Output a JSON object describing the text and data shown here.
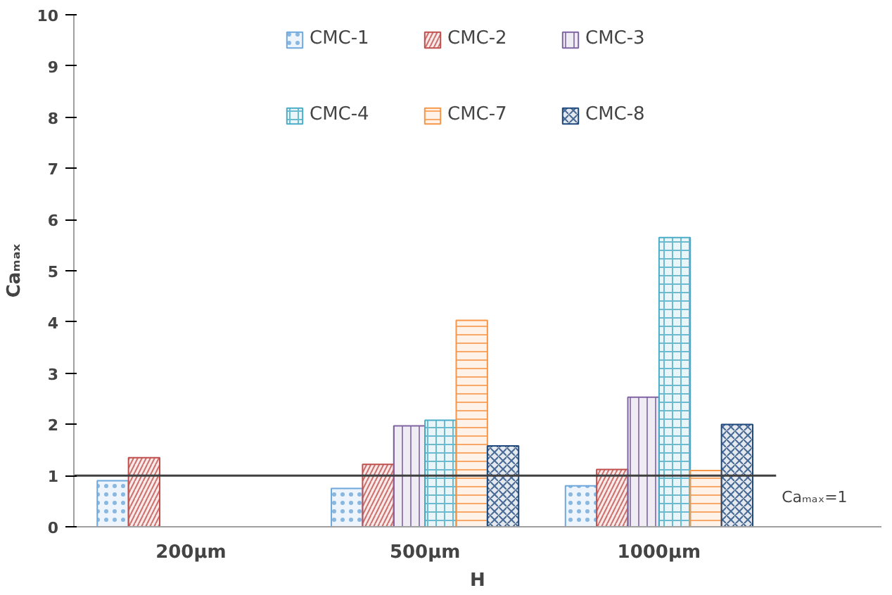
{
  "chart_data": {
    "type": "bar",
    "xlabel": "H",
    "ylabel": "Caₘₐₓ",
    "categories": [
      "200μm",
      "500μm",
      "1000μm"
    ],
    "series": [
      {
        "name": "CMC-1",
        "color": "#6fa8dc",
        "values": [
          0.9,
          0.75,
          0.8
        ]
      },
      {
        "name": "CMC-2",
        "color": "#c0504d",
        "values": [
          1.35,
          1.22,
          1.12
        ]
      },
      {
        "name": "CMC-3",
        "color": "#8064a2",
        "values": [
          null,
          1.97,
          2.53
        ]
      },
      {
        "name": "CMC-4",
        "color": "#4bacc6",
        "values": [
          null,
          2.08,
          5.65
        ]
      },
      {
        "name": "CMC-7",
        "color": "#f79646",
        "values": [
          null,
          4.03,
          1.1
        ]
      },
      {
        "name": "CMC-8",
        "color": "#1f497d",
        "values": [
          null,
          1.58,
          2.0
        ]
      }
    ],
    "ylim": [
      0,
      10
    ],
    "yticks": [
      0,
      1,
      2,
      3,
      4,
      5,
      6,
      7,
      8,
      9,
      10
    ],
    "grid": false,
    "legend": "top",
    "ref_lines": [
      {
        "axis": "y",
        "value": 1,
        "label": "Caₘₐₓ=1",
        "color": "#404040"
      }
    ]
  }
}
